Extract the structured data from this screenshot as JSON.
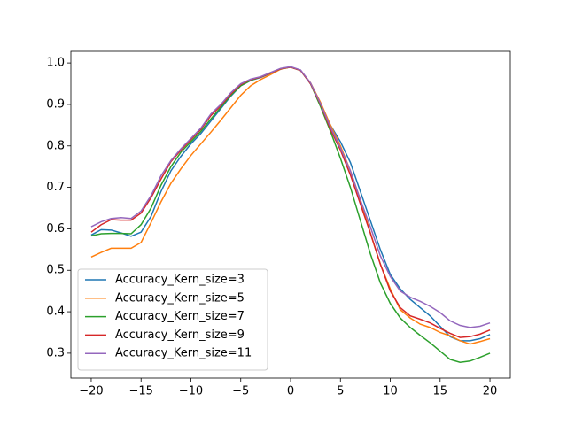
{
  "chart_data": {
    "type": "line",
    "x": [
      -20,
      -19,
      -18,
      -17,
      -16,
      -15,
      -14,
      -13,
      -12,
      -11,
      -10,
      -9,
      -8,
      -7,
      -6,
      -5,
      -4,
      -3,
      -2,
      -1,
      0,
      1,
      2,
      3,
      4,
      5,
      6,
      7,
      8,
      9,
      10,
      11,
      12,
      13,
      14,
      15,
      16,
      17,
      18,
      19,
      20
    ],
    "series": [
      {
        "name": "Accuracy_Kern_size=3",
        "color": "#1f77b4",
        "values": [
          0.585,
          0.598,
          0.597,
          0.59,
          0.582,
          0.592,
          0.63,
          0.69,
          0.74,
          0.775,
          0.805,
          0.83,
          0.86,
          0.89,
          0.92,
          0.945,
          0.958,
          0.965,
          0.975,
          0.985,
          0.99,
          0.982,
          0.95,
          0.9,
          0.85,
          0.81,
          0.76,
          0.69,
          0.62,
          0.55,
          0.49,
          0.455,
          0.43,
          0.41,
          0.39,
          0.365,
          0.34,
          0.33,
          0.33,
          0.335,
          0.345
        ]
      },
      {
        "name": "Accuracy_Kern_size=5",
        "color": "#ff7f0e",
        "values": [
          0.532,
          0.543,
          0.553,
          0.553,
          0.553,
          0.567,
          0.615,
          0.665,
          0.71,
          0.745,
          0.777,
          0.805,
          0.833,
          0.862,
          0.892,
          0.922,
          0.945,
          0.96,
          0.972,
          0.985,
          0.99,
          0.982,
          0.952,
          0.905,
          0.85,
          0.8,
          0.74,
          0.67,
          0.59,
          0.515,
          0.455,
          0.405,
          0.385,
          0.37,
          0.362,
          0.35,
          0.342,
          0.33,
          0.322,
          0.328,
          0.335
        ]
      },
      {
        "name": "Accuracy_Kern_size=7",
        "color": "#2ca02c",
        "values": [
          0.583,
          0.588,
          0.589,
          0.589,
          0.588,
          0.61,
          0.65,
          0.705,
          0.75,
          0.785,
          0.81,
          0.835,
          0.865,
          0.893,
          0.922,
          0.945,
          0.958,
          0.966,
          0.976,
          0.986,
          0.99,
          0.982,
          0.95,
          0.895,
          0.835,
          0.77,
          0.7,
          0.62,
          0.54,
          0.47,
          0.42,
          0.385,
          0.362,
          0.343,
          0.325,
          0.305,
          0.285,
          0.278,
          0.281,
          0.29,
          0.3
        ]
      },
      {
        "name": "Accuracy_Kern_size=9",
        "color": "#d62728",
        "values": [
          0.592,
          0.61,
          0.622,
          0.621,
          0.621,
          0.638,
          0.675,
          0.72,
          0.762,
          0.79,
          0.815,
          0.84,
          0.873,
          0.897,
          0.925,
          0.948,
          0.96,
          0.966,
          0.976,
          0.986,
          0.99,
          0.982,
          0.95,
          0.9,
          0.84,
          0.79,
          0.73,
          0.66,
          0.59,
          0.515,
          0.45,
          0.41,
          0.39,
          0.382,
          0.373,
          0.36,
          0.348,
          0.338,
          0.34,
          0.346,
          0.356
        ]
      },
      {
        "name": "Accuracy_Kern_size=11",
        "color": "#9467bd",
        "values": [
          0.605,
          0.617,
          0.625,
          0.627,
          0.625,
          0.643,
          0.68,
          0.728,
          0.765,
          0.793,
          0.818,
          0.843,
          0.877,
          0.9,
          0.928,
          0.95,
          0.961,
          0.967,
          0.977,
          0.987,
          0.991,
          0.983,
          0.952,
          0.902,
          0.845,
          0.795,
          0.74,
          0.67,
          0.605,
          0.535,
          0.485,
          0.45,
          0.435,
          0.425,
          0.413,
          0.398,
          0.378,
          0.367,
          0.362,
          0.365,
          0.373
        ]
      }
    ],
    "xlim": [
      -22.04,
      22.04
    ],
    "xticks": [
      {
        "value": -20,
        "label": "−20"
      },
      {
        "value": -15,
        "label": "−15"
      },
      {
        "value": -10,
        "label": "−10"
      },
      {
        "value": -5,
        "label": "−5"
      },
      0,
      5,
      10,
      15,
      20
    ],
    "ylim": [
      0.24,
      1.028
    ],
    "yticks": [
      0.3,
      0.4,
      0.5,
      0.6,
      0.7,
      0.8,
      0.9,
      {
        "value": 1,
        "label": "1.0"
      }
    ],
    "legend": "lower left"
  }
}
